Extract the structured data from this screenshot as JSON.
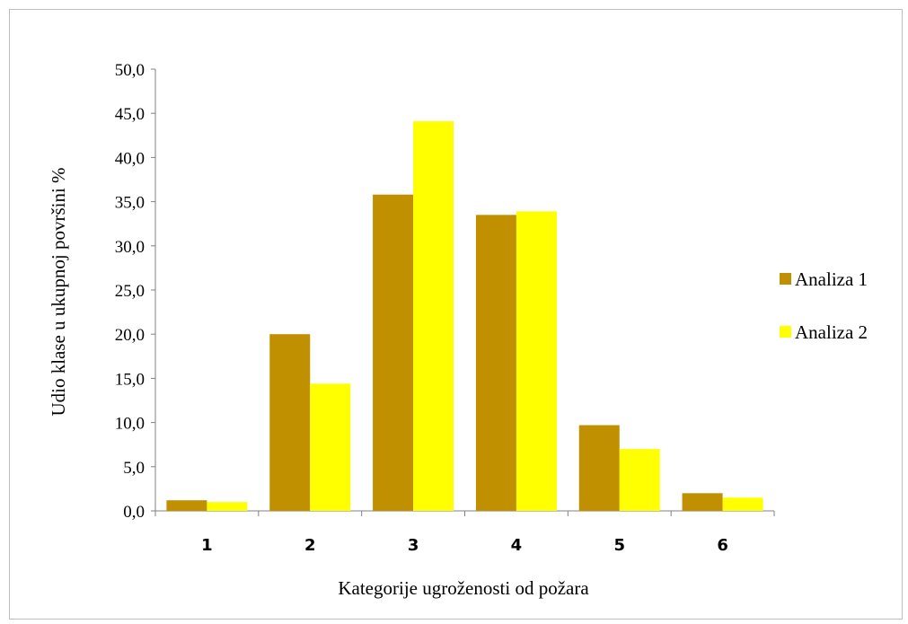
{
  "chart_data": {
    "type": "bar",
    "title": "",
    "xlabel": "Kategorije ugroženosti od požara",
    "ylabel": "Udio klase u ukupnoj površini %",
    "categories": [
      "1",
      "2",
      "3",
      "4",
      "5",
      "6"
    ],
    "series": [
      {
        "name": "Analiza 1",
        "color": "#c09000",
        "values": [
          1.2,
          20.0,
          35.8,
          33.5,
          9.7,
          2.0
        ]
      },
      {
        "name": "Analiza 2",
        "color": "#ffff00",
        "values": [
          1.0,
          14.4,
          44.1,
          33.9,
          7.0,
          1.5
        ]
      }
    ],
    "ylim": [
      0,
      50
    ],
    "yticks": [
      "0,0",
      "5,0",
      "10,0",
      "15,0",
      "20,0",
      "25,0",
      "30,0",
      "35,0",
      "40,0",
      "45,0",
      "50,0"
    ],
    "grid": false,
    "legend_position": "right"
  }
}
